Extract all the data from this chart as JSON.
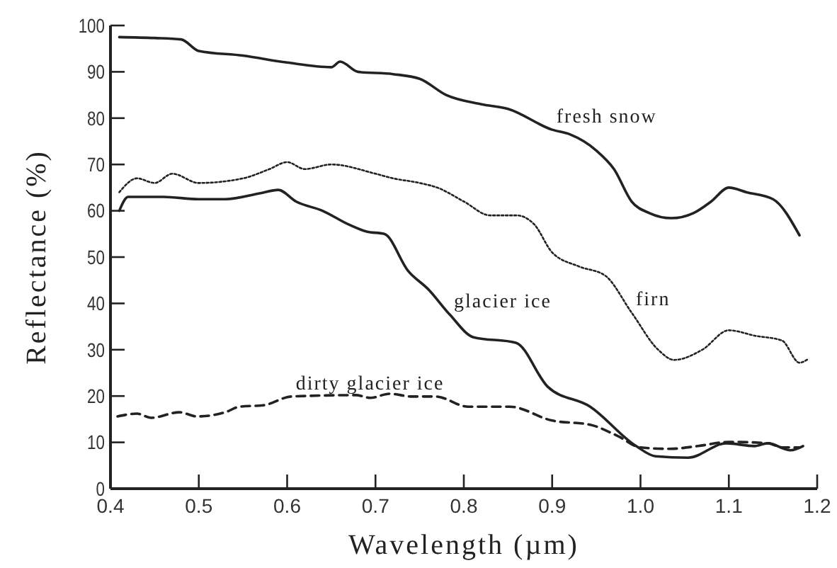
{
  "chart_data": {
    "type": "line",
    "xlabel": "Wavelength (µm)",
    "ylabel": "Reflectance (%)",
    "xlim": [
      0.4,
      1.2
    ],
    "ylim": [
      0,
      100
    ],
    "xticks": [
      {
        "value": 0.4,
        "label": "0.4"
      },
      {
        "value": 0.5,
        "label": "0.5"
      },
      {
        "value": 0.6,
        "label": "0.6"
      },
      {
        "value": 0.7,
        "label": "0.7"
      },
      {
        "value": 0.8,
        "label": "0.8"
      },
      {
        "value": 0.9,
        "label": "0.9"
      },
      {
        "value": 1.0,
        "label": "1.0"
      },
      {
        "value": 1.1,
        "label": "1.1"
      },
      {
        "value": 1.2,
        "label": "1.2"
      }
    ],
    "yticks": [
      0,
      10,
      20,
      30,
      40,
      50,
      60,
      70,
      80,
      90,
      100
    ],
    "grid": false,
    "marker": "none",
    "series": [
      {
        "color": "#222222",
        "line_style": "solid",
        "x": [
          0.41,
          0.45,
          0.48,
          0.5,
          0.55,
          0.6,
          0.65,
          0.66,
          0.68,
          0.72,
          0.75,
          0.78,
          0.82,
          0.85,
          0.9,
          0.92,
          0.95,
          0.97,
          0.99,
          1.01,
          1.035,
          1.06,
          1.08,
          1.1,
          1.12,
          1.15,
          1.18
        ],
        "values": [
          97.5,
          97.3,
          97,
          94.5,
          93.5,
          92,
          91,
          92.2,
          90,
          89.5,
          88.5,
          85,
          83,
          82,
          77.5,
          76.5,
          73,
          69,
          62,
          59.5,
          58.4,
          59.5,
          62,
          65,
          64,
          62.5,
          54.7
        ]
      },
      {
        "color": "#222222",
        "line_style": "dotted",
        "x": [
          0.41,
          0.43,
          0.45,
          0.47,
          0.5,
          0.55,
          0.58,
          0.6,
          0.62,
          0.65,
          0.7,
          0.72,
          0.75,
          0.77,
          0.8,
          0.83,
          0.86,
          0.88,
          0.9,
          0.93,
          0.96,
          0.99,
          1.02,
          1.038,
          1.07,
          1.1,
          1.13,
          1.16,
          1.18,
          1.19
        ],
        "values": [
          64,
          67,
          66,
          68,
          66,
          67,
          69,
          70.5,
          69,
          70,
          68,
          67,
          66,
          65,
          62,
          59,
          59,
          57,
          51,
          48,
          46,
          38,
          30,
          27.8,
          30,
          34.2,
          33,
          32,
          27.2,
          28
        ]
      },
      {
        "color": "#222222",
        "line_style": "solid",
        "x": [
          0.41,
          0.42,
          0.46,
          0.5,
          0.53,
          0.57,
          0.59,
          0.61,
          0.64,
          0.67,
          0.69,
          0.71,
          0.737,
          0.76,
          0.784,
          0.811,
          0.859,
          0.895,
          0.943,
          0.995,
          1.017,
          1.054,
          1.097,
          1.129,
          1.144,
          1.17,
          1.184
        ],
        "values": [
          60,
          63,
          63,
          62.5,
          62.5,
          63.8,
          64.5,
          62,
          60,
          57,
          55.5,
          55,
          47,
          43,
          37.6,
          32.7,
          31.5,
          22,
          17.7,
          9.2,
          7,
          6.7,
          9.8,
          9.2,
          9.8,
          8.3,
          9.2
        ]
      },
      {
        "color": "#222222",
        "line_style": "dashed",
        "x": [
          0.408,
          0.43,
          0.446,
          0.478,
          0.498,
          0.53,
          0.546,
          0.573,
          0.605,
          0.678,
          0.694,
          0.716,
          0.741,
          0.768,
          0.805,
          0.852,
          0.9,
          0.943,
          0.975,
          1.0,
          1.033,
          1.065,
          1.1,
          1.145,
          1.16,
          1.18
        ],
        "values": [
          15.6,
          16.2,
          15.3,
          16.5,
          15.6,
          16.5,
          17.7,
          18,
          19.9,
          20.2,
          19.6,
          20.5,
          19.9,
          19.9,
          17.7,
          17.7,
          14.7,
          13.8,
          11.3,
          8.9,
          8.6,
          9.2,
          10.1,
          9.8,
          8.9,
          8.9
        ]
      }
    ],
    "annotations": [
      {
        "text": "fresh snow",
        "x": 0.9,
        "y": 77.5
      },
      {
        "text": "firn",
        "x": 0.99,
        "y": 38
      },
      {
        "text": "glacier ice",
        "x": 0.784,
        "y": 37.6
      },
      {
        "text": "dirty glacier ice",
        "x": 0.605,
        "y": 19.9
      }
    ]
  }
}
